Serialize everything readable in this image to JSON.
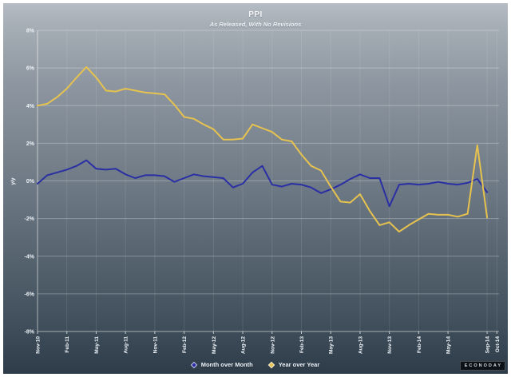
{
  "header": {
    "title": "PPI",
    "subtitle": "As Released, With No Revisions"
  },
  "legend": {
    "items": [
      {
        "label": "Month over Month",
        "color": "#2b2fa4"
      },
      {
        "label": "Year over Year",
        "color": "#e6c24f"
      }
    ]
  },
  "logo": {
    "text": "ECONODAY"
  },
  "chart_data": {
    "type": "line",
    "title": "PPI",
    "subtitle": "As Released, With No Revisions",
    "ylabel": "y/y",
    "ylim": [
      -8,
      8
    ],
    "y_tick_step": 2,
    "y_tick_labels": [
      "8%",
      "6%",
      "4%",
      "2%",
      "0%",
      "-2%",
      "-4%",
      "-6%",
      "-8%"
    ],
    "grid": true,
    "legend_position": "bottom",
    "x": [
      "Nov-10",
      "Dec-10",
      "Jan-11",
      "Feb-11",
      "Mar-11",
      "Apr-11",
      "May-11",
      "Jun-11",
      "Jul-11",
      "Aug-11",
      "Sep-11",
      "Oct-11",
      "Nov-11",
      "Dec-11",
      "Jan-12",
      "Feb-12",
      "Mar-12",
      "Apr-12",
      "May-12",
      "Jun-12",
      "Jul-12",
      "Aug-12",
      "Sep-12",
      "Oct-12",
      "Nov-12",
      "Dec-12",
      "Jan-13",
      "Feb-13",
      "Mar-13",
      "Apr-13",
      "May-13",
      "Jun-13",
      "Jul-13",
      "Aug-13",
      "Sep-13",
      "Oct-13",
      "Nov-13",
      "Dec-13",
      "Jan-14",
      "Feb-14",
      "Mar-14",
      "Apr-14",
      "May-14",
      "Jun-14",
      "Jul-14",
      "Aug-14",
      "Sep-14"
    ],
    "x_axis_ticks": [
      {
        "i": 0,
        "label": "Nov-10"
      },
      {
        "i": 3,
        "label": "Feb-11"
      },
      {
        "i": 6,
        "label": "May-11"
      },
      {
        "i": 9,
        "label": "Aug-11"
      },
      {
        "i": 12,
        "label": "Nov-11"
      },
      {
        "i": 15,
        "label": "Feb-12"
      },
      {
        "i": 18,
        "label": "May-12"
      },
      {
        "i": 21,
        "label": "Aug-12"
      },
      {
        "i": 24,
        "label": "Nov-12"
      },
      {
        "i": 27,
        "label": "Feb-13"
      },
      {
        "i": 30,
        "label": "May-13"
      },
      {
        "i": 33,
        "label": "Aug-13"
      },
      {
        "i": 36,
        "label": "Nov-13"
      },
      {
        "i": 39,
        "label": "Feb-14"
      },
      {
        "i": 42,
        "label": "May-14"
      },
      {
        "i": 46,
        "label": "Sep-14"
      },
      {
        "i": 47,
        "label": "Oct-14"
      }
    ],
    "series": [
      {
        "name": "Month over Month",
        "color": "#2b2fa4",
        "values": [
          -0.15,
          0.3,
          0.45,
          0.6,
          0.8,
          1.1,
          0.65,
          0.6,
          0.65,
          0.35,
          0.15,
          0.3,
          0.3,
          0.25,
          -0.05,
          0.15,
          0.35,
          0.25,
          0.2,
          0.15,
          -0.35,
          -0.15,
          0.45,
          0.8,
          -0.2,
          -0.3,
          -0.15,
          -0.2,
          -0.35,
          -0.65,
          -0.45,
          -0.2,
          0.1,
          0.35,
          0.15,
          0.15,
          -1.35,
          -0.2,
          -0.15,
          -0.2,
          -0.15,
          -0.05,
          -0.15,
          -0.2,
          -0.1,
          0.1,
          -0.6
        ]
      },
      {
        "name": "Year over Year",
        "color": "#e6c24f",
        "values": [
          4.0,
          4.1,
          4.45,
          4.9,
          5.5,
          6.05,
          5.5,
          4.8,
          4.75,
          4.9,
          4.8,
          4.7,
          4.65,
          4.6,
          4.05,
          3.4,
          3.3,
          3.0,
          2.75,
          2.2,
          2.2,
          2.25,
          3.0,
          2.8,
          2.6,
          2.2,
          2.1,
          1.4,
          0.8,
          0.55,
          -0.3,
          -1.1,
          -1.15,
          -0.7,
          -1.6,
          -2.35,
          -2.2,
          -2.7,
          -2.35,
          -2.05,
          -1.75,
          -1.8,
          -1.8,
          -1.9,
          -1.75,
          1.9,
          -1.95
        ]
      }
    ],
    "grid_color": "#ffffff",
    "background_top": "#b5bcc3",
    "background_bottom": "#2e3c49"
  }
}
